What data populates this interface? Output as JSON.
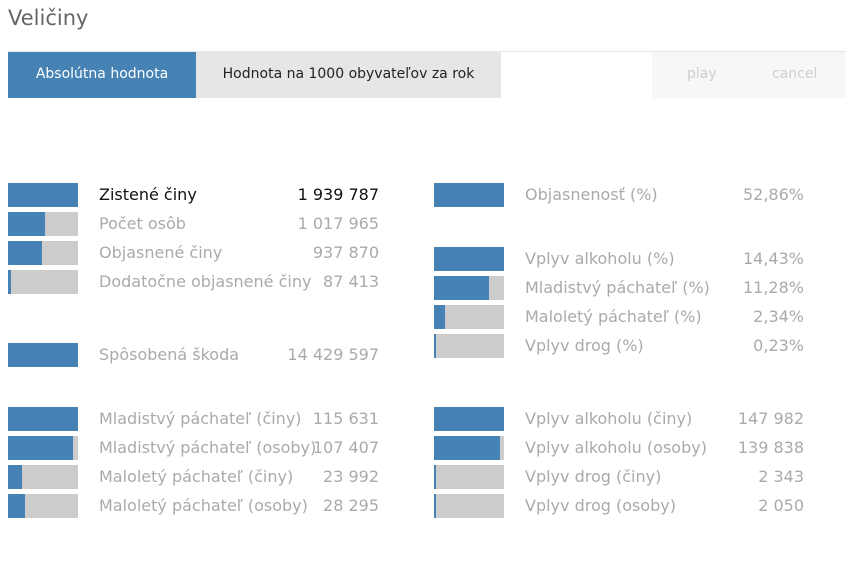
{
  "title": "Veličiny",
  "tabs": {
    "absolute": "Absolútna hodnota",
    "relative": "Hodnota na 1000 obyvateľov za rok"
  },
  "controls": {
    "play": "play",
    "cancel": "cancel"
  },
  "colors": {
    "accent": "#4682b4",
    "bar_bg": "#cccccc"
  },
  "left_groups": [
    [
      {
        "label": "Zistené činy",
        "value": "1 939 787",
        "fill": 1.0,
        "active": true
      },
      {
        "label": "Počet osôb",
        "value": "1 017 965",
        "fill": 0.525
      },
      {
        "label": "Objasnené činy",
        "value": "937 870",
        "fill": 0.483
      },
      {
        "label": "Dodatočne objasnené činy",
        "value": "87 413",
        "fill": 0.045
      }
    ],
    [
      {
        "label": "Spôsobená škoda",
        "value": "14 429 597",
        "fill": 1.0
      }
    ],
    [
      {
        "label": "Mladistvý páchateľ (činy)",
        "value": "115 631",
        "fill": 1.0
      },
      {
        "label": "Mladistvý páchateľ (osoby)",
        "value": "107 407",
        "fill": 0.929
      },
      {
        "label": "Maloletý páchateľ (činy)",
        "value": "23 992",
        "fill": 0.207
      },
      {
        "label": "Maloletý páchateľ (osoby)",
        "value": "28 295",
        "fill": 0.245
      }
    ]
  ],
  "right_groups": [
    [
      {
        "label": "Objasnenosť (%)",
        "value": "52,86%",
        "fill": 1.0
      }
    ],
    [
      {
        "label": "Vplyv alkoholu (%)",
        "value": "14,43%",
        "fill": 1.0
      },
      {
        "label": "Mladistvý páchateľ (%)",
        "value": "11,28%",
        "fill": 0.782
      },
      {
        "label": "Maloletý páchateľ (%)",
        "value": "2,34%",
        "fill": 0.162
      },
      {
        "label": "Vplyv drog (%)",
        "value": "0,23%",
        "fill": 0.016
      }
    ],
    [
      {
        "label": "Vplyv alkoholu (činy)",
        "value": "147 982",
        "fill": 1.0
      },
      {
        "label": "Vplyv alkoholu (osoby)",
        "value": "139 838",
        "fill": 0.945
      },
      {
        "label": "Vplyv drog (činy)",
        "value": "2 343",
        "fill": 0.016
      },
      {
        "label": "Vplyv drog (osoby)",
        "value": "2 050",
        "fill": 0.014
      }
    ]
  ]
}
